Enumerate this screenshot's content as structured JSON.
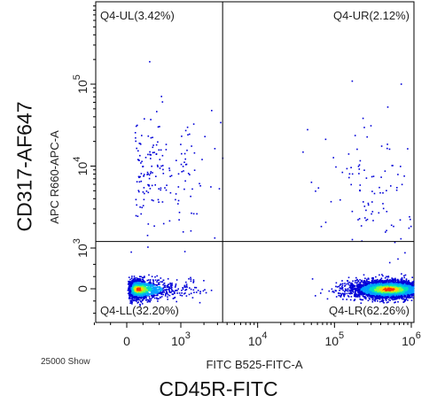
{
  "chart_data": {
    "type": "scatter",
    "subtype": "flow-cytometry density dot plot",
    "xlabel": "FITC B525-FITC-A",
    "ylabel": "APC R660-APC-A",
    "outer_xlabel": "CD45R-FITC",
    "outer_ylabel": "CD317-AF647",
    "event_count_label": "25000 Show",
    "x_scale": "biexponential",
    "y_scale": "biexponential",
    "x_ticks": [
      {
        "base": "0",
        "exp": ""
      },
      {
        "base": "10",
        "exp": "3"
      },
      {
        "base": "10",
        "exp": "4"
      },
      {
        "base": "10",
        "exp": "5"
      },
      {
        "base": "10",
        "exp": "6"
      }
    ],
    "y_ticks": [
      {
        "base": "0",
        "exp": ""
      },
      {
        "base": "10",
        "exp": "3"
      },
      {
        "base": "10",
        "exp": "4"
      },
      {
        "base": "10",
        "exp": "5"
      }
    ],
    "quadrant_gate": {
      "x": 3500,
      "y": 1200
    },
    "quadrants": [
      {
        "name": "Q4-UL",
        "percent": "3.42%",
        "label": "Q4-UL(3.42%)"
      },
      {
        "name": "Q4-UR",
        "percent": "2.12%",
        "label": "Q4-UR(2.12%)"
      },
      {
        "name": "Q4-LL",
        "percent": "32.20%",
        "label": "Q4-LL(32.20%)"
      },
      {
        "name": "Q4-LR",
        "percent": "62.26%",
        "label": "Q4-LR(62.26%)"
      }
    ],
    "populations": [
      {
        "name": "Q4-LL",
        "center": [
          200,
          0
        ],
        "x_log_spread": 0.35,
        "y_spread": 120,
        "relative_density": 0.32
      },
      {
        "name": "Q4-LR",
        "center": [
          500000,
          0
        ],
        "x_log_spread": 0.25,
        "y_spread": 110,
        "relative_density": 0.62
      },
      {
        "name": "Q4-UL",
        "center": [
          600,
          8000
        ],
        "x_log_spread": 0.3,
        "y_log_spread": 0.4,
        "relative_density": 0.034
      },
      {
        "name": "Q4-UR",
        "center": [
          400000,
          6000
        ],
        "x_log_spread": 0.4,
        "y_log_spread": 0.45,
        "relative_density": 0.021
      }
    ],
    "density_colors": [
      "#0000d8",
      "#00a0ff",
      "#00e0c0",
      "#80ff40",
      "#ffd800",
      "#ff3000"
    ],
    "grid": false,
    "legend": "none"
  }
}
